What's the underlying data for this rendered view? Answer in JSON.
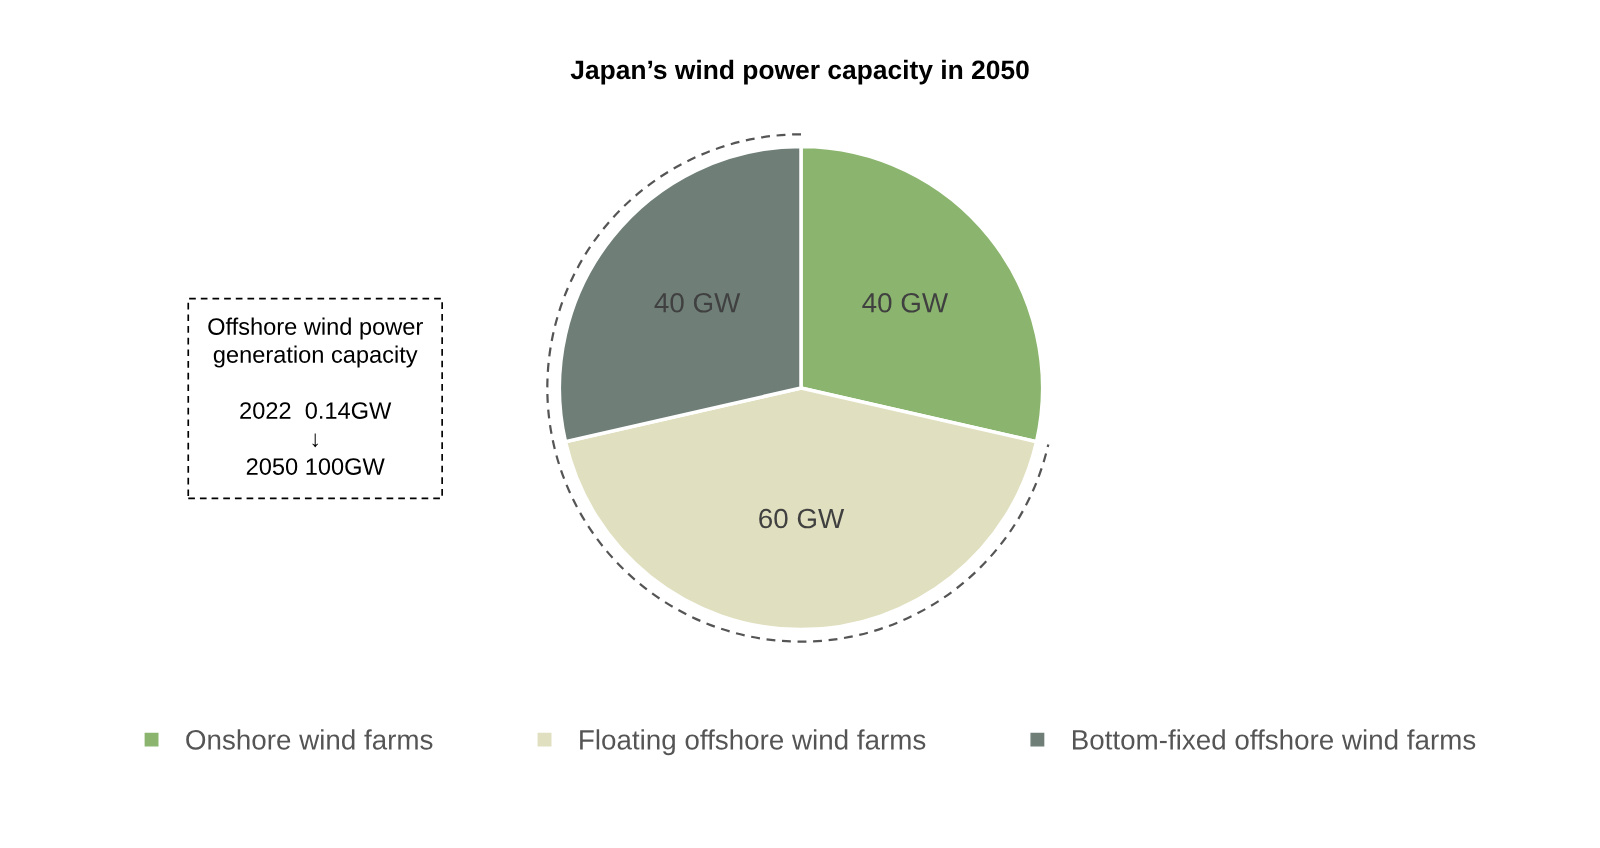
{
  "chart_data": {
    "type": "pie",
    "title": "Japan’s wind power capacity in 2050",
    "categories": [
      "Onshore wind farms",
      "Floating offshore wind farms",
      "Bottom-fixed offshore wind farms"
    ],
    "values": [
      40,
      60,
      40
    ],
    "colors": [
      "#8bb56e",
      "#e0dfbf",
      "#6f7f78"
    ],
    "value_labels": [
      "40 GW",
      "60 GW",
      "40 GW"
    ],
    "legend": "bottom",
    "annotations": [
      "Offshore wind power\ngeneration capacity\n\n2022  0.14GW\n↓\n2050 100GW"
    ]
  }
}
